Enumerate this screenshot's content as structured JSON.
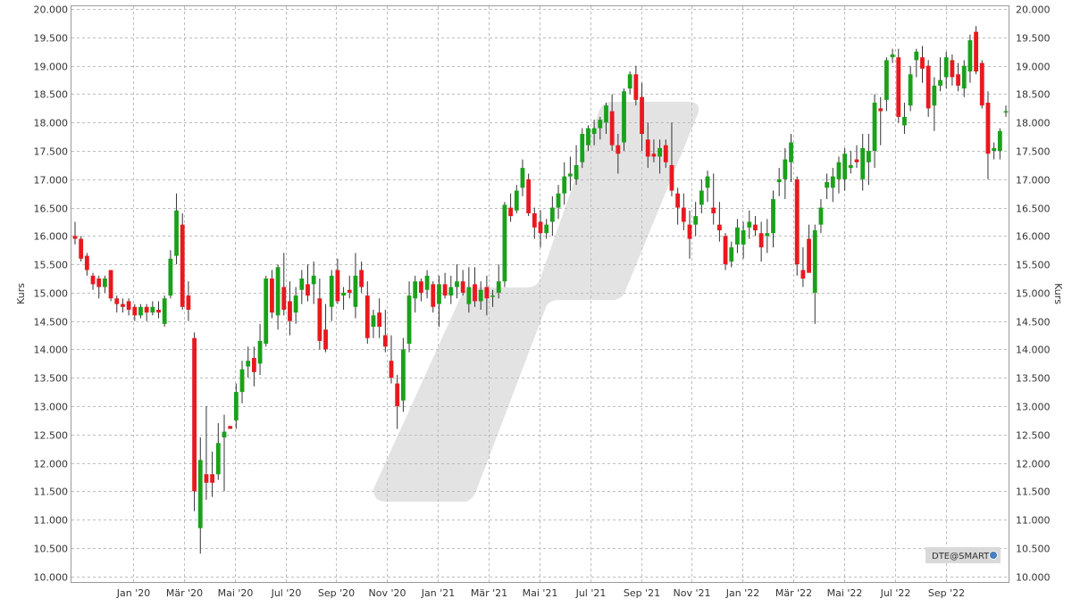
{
  "chart_data": {
    "type": "candlestick",
    "y_label_left": "Kurs",
    "y_label_right": "Kurs",
    "ylim": [
      9900,
      20050
    ],
    "y_ticks": [
      "10.000",
      "10.500",
      "11.000",
      "11.500",
      "12.000",
      "12.500",
      "13.000",
      "13.500",
      "14.000",
      "14.500",
      "15.000",
      "15.500",
      "16.000",
      "16.500",
      "17.000",
      "17.500",
      "18.000",
      "18.500",
      "19.000",
      "19.500",
      "20.000"
    ],
    "x_ticks": [
      "Jan '20",
      "Mär '20",
      "Mai '20",
      "Jul '20",
      "Sep '20",
      "Nov '20",
      "Jan '21",
      "Mär '21",
      "Mai '21",
      "Jul '21",
      "Sep '21",
      "Nov '21",
      "Jan '22",
      "Mär '22",
      "Mai '22",
      "Jul '22",
      "Sep '22"
    ],
    "grid": true,
    "colors": {
      "up": "#1aa11a",
      "down": "#e8191f",
      "wick": "#333333",
      "grid": "#bdbdbd",
      "watermark": "#e3e3e3"
    },
    "source_label": "DTE@SMART",
    "candles": [
      {
        "o": 16000,
        "h": 16250,
        "l": 15850,
        "c": 15950
      },
      {
        "o": 15950,
        "h": 16000,
        "l": 15550,
        "c": 15600
      },
      {
        "o": 15650,
        "h": 15700,
        "l": 15300,
        "c": 15400
      },
      {
        "o": 15300,
        "h": 15350,
        "l": 15050,
        "c": 15150
      },
      {
        "o": 15250,
        "h": 15300,
        "l": 14900,
        "c": 15100
      },
      {
        "o": 15100,
        "h": 15300,
        "l": 15000,
        "c": 15250
      },
      {
        "o": 15400,
        "h": 15400,
        "l": 14850,
        "c": 14900
      },
      {
        "o": 14900,
        "h": 14950,
        "l": 14650,
        "c": 14800
      },
      {
        "o": 14800,
        "h": 14900,
        "l": 14650,
        "c": 14750
      },
      {
        "o": 14850,
        "h": 14900,
        "l": 14600,
        "c": 14700
      },
      {
        "o": 14750,
        "h": 14800,
        "l": 14500,
        "c": 14600
      },
      {
        "o": 14600,
        "h": 14800,
        "l": 14550,
        "c": 14750
      },
      {
        "o": 14750,
        "h": 14800,
        "l": 14500,
        "c": 14650
      },
      {
        "o": 14650,
        "h": 14850,
        "l": 14600,
        "c": 14750
      },
      {
        "o": 14700,
        "h": 14850,
        "l": 14550,
        "c": 14650
      },
      {
        "o": 14450,
        "h": 14950,
        "l": 14400,
        "c": 14900
      },
      {
        "o": 14950,
        "h": 15750,
        "l": 14900,
        "c": 15600
      },
      {
        "o": 15650,
        "h": 16750,
        "l": 15500,
        "c": 16450
      },
      {
        "o": 16200,
        "h": 16400,
        "l": 14700,
        "c": 14750
      },
      {
        "o": 14950,
        "h": 15200,
        "l": 14500,
        "c": 14700
      },
      {
        "o": 14200,
        "h": 14300,
        "l": 11150,
        "c": 11500
      },
      {
        "o": 10850,
        "h": 12450,
        "l": 10400,
        "c": 12050
      },
      {
        "o": 11800,
        "h": 13000,
        "l": 11350,
        "c": 11650
      },
      {
        "o": 11800,
        "h": 12200,
        "l": 11400,
        "c": 11650
      },
      {
        "o": 11800,
        "h": 12700,
        "l": 11700,
        "c": 12350
      },
      {
        "o": 12450,
        "h": 12850,
        "l": 11500,
        "c": 12550
      },
      {
        "o": 12650,
        "h": 12650,
        "l": 12600,
        "c": 12600
      },
      {
        "o": 12750,
        "h": 13400,
        "l": 12600,
        "c": 13250
      },
      {
        "o": 13250,
        "h": 13800,
        "l": 13050,
        "c": 13650
      },
      {
        "o": 13700,
        "h": 14050,
        "l": 13500,
        "c": 13800
      },
      {
        "o": 13850,
        "h": 14050,
        "l": 13350,
        "c": 13600
      },
      {
        "o": 13750,
        "h": 14450,
        "l": 13550,
        "c": 14150
      },
      {
        "o": 14100,
        "h": 15300,
        "l": 14050,
        "c": 15250
      },
      {
        "o": 15250,
        "h": 15400,
        "l": 14550,
        "c": 14650
      },
      {
        "o": 14600,
        "h": 15500,
        "l": 14350,
        "c": 15450
      },
      {
        "o": 15100,
        "h": 15700,
        "l": 14600,
        "c": 14700
      },
      {
        "o": 14850,
        "h": 15200,
        "l": 14250,
        "c": 14500
      },
      {
        "o": 14650,
        "h": 15100,
        "l": 14450,
        "c": 14950
      },
      {
        "o": 15050,
        "h": 15400,
        "l": 14800,
        "c": 15250
      },
      {
        "o": 15150,
        "h": 15500,
        "l": 14850,
        "c": 14950
      },
      {
        "o": 15150,
        "h": 15550,
        "l": 14800,
        "c": 15300
      },
      {
        "o": 14900,
        "h": 15250,
        "l": 14000,
        "c": 14150
      },
      {
        "o": 14350,
        "h": 14800,
        "l": 13950,
        "c": 14000
      },
      {
        "o": 14750,
        "h": 15400,
        "l": 14500,
        "c": 15300
      },
      {
        "o": 15400,
        "h": 15600,
        "l": 14800,
        "c": 14850
      },
      {
        "o": 14950,
        "h": 15100,
        "l": 14700,
        "c": 15000
      },
      {
        "o": 15050,
        "h": 15300,
        "l": 14900,
        "c": 15000
      },
      {
        "o": 14750,
        "h": 15700,
        "l": 14550,
        "c": 15300
      },
      {
        "o": 15400,
        "h": 15550,
        "l": 15000,
        "c": 15100
      },
      {
        "o": 14950,
        "h": 15200,
        "l": 14100,
        "c": 14200
      },
      {
        "o": 14400,
        "h": 14700,
        "l": 14200,
        "c": 14600
      },
      {
        "o": 14650,
        "h": 14900,
        "l": 14200,
        "c": 14400
      },
      {
        "o": 14250,
        "h": 14700,
        "l": 13950,
        "c": 14050
      },
      {
        "o": 13800,
        "h": 14250,
        "l": 13400,
        "c": 13500
      },
      {
        "o": 13400,
        "h": 13550,
        "l": 12600,
        "c": 13000
      },
      {
        "o": 13100,
        "h": 14200,
        "l": 12900,
        "c": 14000
      },
      {
        "o": 14100,
        "h": 15200,
        "l": 13950,
        "c": 14950
      },
      {
        "o": 14900,
        "h": 15300,
        "l": 14650,
        "c": 15200
      },
      {
        "o": 15200,
        "h": 15250,
        "l": 14850,
        "c": 15000
      },
      {
        "o": 15050,
        "h": 15400,
        "l": 14900,
        "c": 15300
      },
      {
        "o": 15150,
        "h": 15200,
        "l": 14650,
        "c": 14750
      },
      {
        "o": 14800,
        "h": 15300,
        "l": 14400,
        "c": 15150
      },
      {
        "o": 15150,
        "h": 15350,
        "l": 14900,
        "c": 14950
      },
      {
        "o": 14950,
        "h": 15300,
        "l": 14800,
        "c": 15100
      },
      {
        "o": 15100,
        "h": 15500,
        "l": 14900,
        "c": 15200
      },
      {
        "o": 15200,
        "h": 15400,
        "l": 14950,
        "c": 15000
      },
      {
        "o": 14800,
        "h": 15450,
        "l": 14650,
        "c": 15100
      },
      {
        "o": 15150,
        "h": 15450,
        "l": 14750,
        "c": 14850
      },
      {
        "o": 14850,
        "h": 15200,
        "l": 14700,
        "c": 15050
      },
      {
        "o": 15100,
        "h": 15300,
        "l": 14600,
        "c": 14900
      },
      {
        "o": 14950,
        "h": 15050,
        "l": 14750,
        "c": 14950
      },
      {
        "o": 15000,
        "h": 15500,
        "l": 14900,
        "c": 15200
      },
      {
        "o": 15200,
        "h": 16600,
        "l": 15100,
        "c": 16550
      },
      {
        "o": 16500,
        "h": 16750,
        "l": 16250,
        "c": 16350
      },
      {
        "o": 16450,
        "h": 16900,
        "l": 16400,
        "c": 16800
      },
      {
        "o": 16850,
        "h": 17350,
        "l": 16700,
        "c": 17200
      },
      {
        "o": 17000,
        "h": 17100,
        "l": 16350,
        "c": 16400
      },
      {
        "o": 16400,
        "h": 16500,
        "l": 15950,
        "c": 16150
      },
      {
        "o": 16250,
        "h": 16450,
        "l": 15800,
        "c": 16050
      },
      {
        "o": 16050,
        "h": 16300,
        "l": 15950,
        "c": 16200
      },
      {
        "o": 16250,
        "h": 16700,
        "l": 16000,
        "c": 16500
      },
      {
        "o": 16500,
        "h": 16900,
        "l": 16300,
        "c": 16750
      },
      {
        "o": 16750,
        "h": 17300,
        "l": 16550,
        "c": 17050
      },
      {
        "o": 17050,
        "h": 17400,
        "l": 16800,
        "c": 17100
      },
      {
        "o": 17000,
        "h": 17600,
        "l": 16900,
        "c": 17250
      },
      {
        "o": 17300,
        "h": 17900,
        "l": 17200,
        "c": 17800
      },
      {
        "o": 17600,
        "h": 17950,
        "l": 17500,
        "c": 17900
      },
      {
        "o": 17800,
        "h": 18050,
        "l": 17600,
        "c": 17900
      },
      {
        "o": 17900,
        "h": 18100,
        "l": 17700,
        "c": 18050
      },
      {
        "o": 18000,
        "h": 18350,
        "l": 17800,
        "c": 18300
      },
      {
        "o": 18200,
        "h": 18500,
        "l": 17500,
        "c": 17600
      },
      {
        "o": 17600,
        "h": 17800,
        "l": 17100,
        "c": 17450
      },
      {
        "o": 17650,
        "h": 18600,
        "l": 17500,
        "c": 18550
      },
      {
        "o": 18600,
        "h": 18900,
        "l": 18500,
        "c": 18850
      },
      {
        "o": 18850,
        "h": 19000,
        "l": 18300,
        "c": 18400
      },
      {
        "o": 18450,
        "h": 18700,
        "l": 17500,
        "c": 17800
      },
      {
        "o": 17700,
        "h": 18000,
        "l": 17200,
        "c": 17400
      },
      {
        "o": 17450,
        "h": 17700,
        "l": 17300,
        "c": 17400
      },
      {
        "o": 17400,
        "h": 17700,
        "l": 17100,
        "c": 17550
      },
      {
        "o": 17600,
        "h": 17700,
        "l": 17200,
        "c": 17300
      },
      {
        "o": 17250,
        "h": 18000,
        "l": 16700,
        "c": 16800
      },
      {
        "o": 16750,
        "h": 16850,
        "l": 16200,
        "c": 16500
      },
      {
        "o": 16500,
        "h": 16750,
        "l": 16100,
        "c": 16250
      },
      {
        "o": 16200,
        "h": 16450,
        "l": 15600,
        "c": 15950
      },
      {
        "o": 16200,
        "h": 16600,
        "l": 16000,
        "c": 16350
      },
      {
        "o": 16550,
        "h": 17000,
        "l": 16400,
        "c": 16800
      },
      {
        "o": 16850,
        "h": 17150,
        "l": 16600,
        "c": 17050
      },
      {
        "o": 16500,
        "h": 17100,
        "l": 16200,
        "c": 16400
      },
      {
        "o": 16200,
        "h": 16600,
        "l": 15900,
        "c": 16100
      },
      {
        "o": 16000,
        "h": 16050,
        "l": 15400,
        "c": 15500
      },
      {
        "o": 15550,
        "h": 15900,
        "l": 15450,
        "c": 15800
      },
      {
        "o": 15850,
        "h": 16300,
        "l": 15700,
        "c": 16150
      },
      {
        "o": 15850,
        "h": 16250,
        "l": 15600,
        "c": 16100
      },
      {
        "o": 16150,
        "h": 16450,
        "l": 15950,
        "c": 16250
      },
      {
        "o": 16200,
        "h": 16350,
        "l": 16000,
        "c": 16100
      },
      {
        "o": 16050,
        "h": 16250,
        "l": 15550,
        "c": 15800
      },
      {
        "o": 16000,
        "h": 16300,
        "l": 15700,
        "c": 16050
      },
      {
        "o": 16050,
        "h": 16800,
        "l": 15800,
        "c": 16650
      },
      {
        "o": 16950,
        "h": 17200,
        "l": 16700,
        "c": 17000
      },
      {
        "o": 17000,
        "h": 17550,
        "l": 16650,
        "c": 17350
      },
      {
        "o": 17300,
        "h": 17800,
        "l": 16950,
        "c": 17650
      },
      {
        "o": 17000,
        "h": 17050,
        "l": 15300,
        "c": 15500
      },
      {
        "o": 15400,
        "h": 15800,
        "l": 15100,
        "c": 15250
      },
      {
        "o": 15950,
        "h": 16200,
        "l": 15400,
        "c": 15350
      },
      {
        "o": 15000,
        "h": 16200,
        "l": 14450,
        "c": 16100
      },
      {
        "o": 16200,
        "h": 16650,
        "l": 16050,
        "c": 16500
      },
      {
        "o": 16850,
        "h": 17100,
        "l": 16650,
        "c": 16950
      },
      {
        "o": 16850,
        "h": 17200,
        "l": 16600,
        "c": 17050
      },
      {
        "o": 17000,
        "h": 17400,
        "l": 16750,
        "c": 17300
      },
      {
        "o": 17000,
        "h": 17550,
        "l": 16800,
        "c": 17450
      },
      {
        "o": 17200,
        "h": 17500,
        "l": 17100,
        "c": 17250
      },
      {
        "o": 17350,
        "h": 17600,
        "l": 17200,
        "c": 17300
      },
      {
        "o": 17000,
        "h": 17800,
        "l": 16800,
        "c": 17550
      },
      {
        "o": 17300,
        "h": 17800,
        "l": 16900,
        "c": 17500
      },
      {
        "o": 17500,
        "h": 18500,
        "l": 17200,
        "c": 18350
      },
      {
        "o": 18250,
        "h": 18450,
        "l": 17600,
        "c": 18200
      },
      {
        "o": 18400,
        "h": 19150,
        "l": 18200,
        "c": 19100
      },
      {
        "o": 19150,
        "h": 19300,
        "l": 19050,
        "c": 19200
      },
      {
        "o": 19150,
        "h": 19300,
        "l": 18000,
        "c": 18100
      },
      {
        "o": 17950,
        "h": 18350,
        "l": 17800,
        "c": 18100
      },
      {
        "o": 18300,
        "h": 19000,
        "l": 18200,
        "c": 18850
      },
      {
        "o": 19100,
        "h": 19300,
        "l": 18800,
        "c": 19250
      },
      {
        "o": 19150,
        "h": 19350,
        "l": 18700,
        "c": 18950
      },
      {
        "o": 19000,
        "h": 19100,
        "l": 18100,
        "c": 18250
      },
      {
        "o": 18300,
        "h": 18800,
        "l": 17850,
        "c": 18650
      },
      {
        "o": 18650,
        "h": 19150,
        "l": 18550,
        "c": 18750
      },
      {
        "o": 18800,
        "h": 19250,
        "l": 18600,
        "c": 19150
      },
      {
        "o": 19100,
        "h": 19200,
        "l": 18650,
        "c": 18800
      },
      {
        "o": 18850,
        "h": 19050,
        "l": 18550,
        "c": 18650
      },
      {
        "o": 18600,
        "h": 19100,
        "l": 18450,
        "c": 19000
      },
      {
        "o": 18900,
        "h": 19550,
        "l": 18700,
        "c": 19450
      },
      {
        "o": 19600,
        "h": 19700,
        "l": 18850,
        "c": 18900
      },
      {
        "o": 19050,
        "h": 19100,
        "l": 18250,
        "c": 18300
      },
      {
        "o": 18350,
        "h": 18550,
        "l": 17000,
        "c": 17450
      },
      {
        "o": 17500,
        "h": 17650,
        "l": 17350,
        "c": 17550
      },
      {
        "o": 17500,
        "h": 17900,
        "l": 17350,
        "c": 17850
      },
      {
        "o": 18200,
        "h": 18300,
        "l": 18100,
        "c": 18200
      }
    ]
  }
}
